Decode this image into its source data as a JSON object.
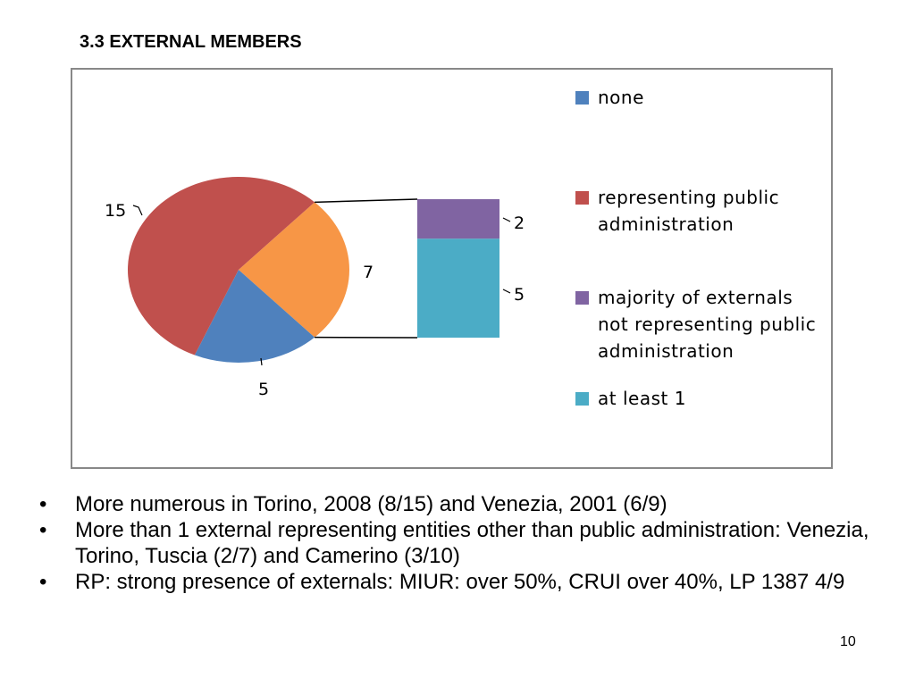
{
  "slide": {
    "title": "3.3 EXTERNAL MEMBERS",
    "page_number": "10"
  },
  "chart_data": {
    "type": "pie",
    "subtype": "bar-of-pie",
    "categories": [
      "none",
      "representing public administration",
      "majority of externals not representing public administration",
      "at least 1"
    ],
    "values": [
      5,
      15,
      2,
      5
    ],
    "colors": [
      "#4F81BD",
      "#C0504D",
      "#8064A2",
      "#4BACC6"
    ],
    "other_slice": {
      "value": 7,
      "color": "#F79646",
      "breakdown": [
        "majority of externals not representing public administration",
        "at least 1"
      ]
    },
    "data_labels": {
      "none": "5",
      "representing public administration": "15",
      "other": "7",
      "majority of externals not representing public administration": "2",
      "at least 1": "5"
    },
    "legend_position": "right"
  },
  "bullets": [
    "More numerous in Torino, 2008 (8/15) and Venezia, 2001 (6/9)",
    "More than 1 external representing entities other than public administration: Venezia, Torino, Tuscia (2/7) and Camerino (3/10)",
    "RP: strong presence of externals: MIUR: over 50%, CRUI over  40%, LP 1387 4/9"
  ]
}
